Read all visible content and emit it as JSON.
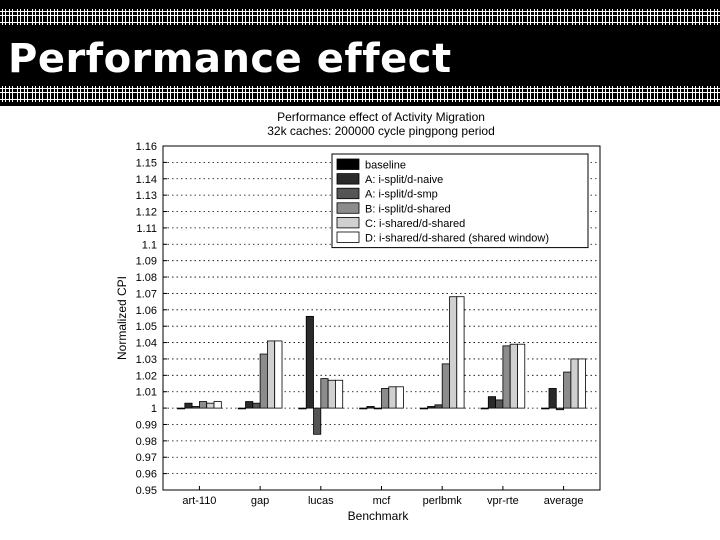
{
  "slide": {
    "title": "Performance effect"
  },
  "chart_data": {
    "type": "bar",
    "title": "Performance effect of Activity Migration",
    "subtitle": "32k caches: 200000 cycle pingpong period",
    "xlabel": "Benchmark",
    "ylabel": "Normalized CPI",
    "ylim": [
      0.95,
      1.16
    ],
    "yticks": [
      "0.95",
      "0.96",
      "0.97",
      "0.98",
      "0.99",
      "1",
      "1.01",
      "1.02",
      "1.03",
      "1.04",
      "1.05",
      "1.06",
      "1.07",
      "1.08",
      "1.09",
      "1.1",
      "1.11",
      "1.12",
      "1.13",
      "1.14",
      "1.15",
      "1.16"
    ],
    "grid": true,
    "legend_position": "top-right",
    "categories": [
      "art-110",
      "gap",
      "lucas",
      "mcf",
      "perlbmk",
      "vpr-rte",
      "average"
    ],
    "series": [
      {
        "name": "baseline",
        "color": "#000000",
        "values": [
          1.0,
          1.0,
          1.0,
          1.0,
          1.0,
          1.0,
          1.0
        ]
      },
      {
        "name": "A: i-split/d-naive",
        "color": "#2a2a2a",
        "values": [
          1.003,
          1.004,
          1.056,
          1.001,
          1.001,
          1.007,
          1.012
        ]
      },
      {
        "name": "A: i-split/d-smp",
        "color": "#555555",
        "values": [
          1.001,
          1.003,
          0.984,
          1.0,
          1.002,
          1.005,
          0.999
        ]
      },
      {
        "name": "B: i-split/d-shared",
        "color": "#8c8c8c",
        "values": [
          1.004,
          1.033,
          1.018,
          1.012,
          1.027,
          1.038,
          1.022
        ]
      },
      {
        "name": "C: i-shared/d-shared",
        "color": "#d0d0d0",
        "values": [
          1.003,
          1.041,
          1.017,
          1.013,
          1.068,
          1.039,
          1.03
        ]
      },
      {
        "name": "D: i-shared/d-shared (shared window)",
        "color": "#ffffff",
        "values": [
          1.004,
          1.041,
          1.017,
          1.013,
          1.068,
          1.039,
          1.03
        ]
      }
    ]
  }
}
